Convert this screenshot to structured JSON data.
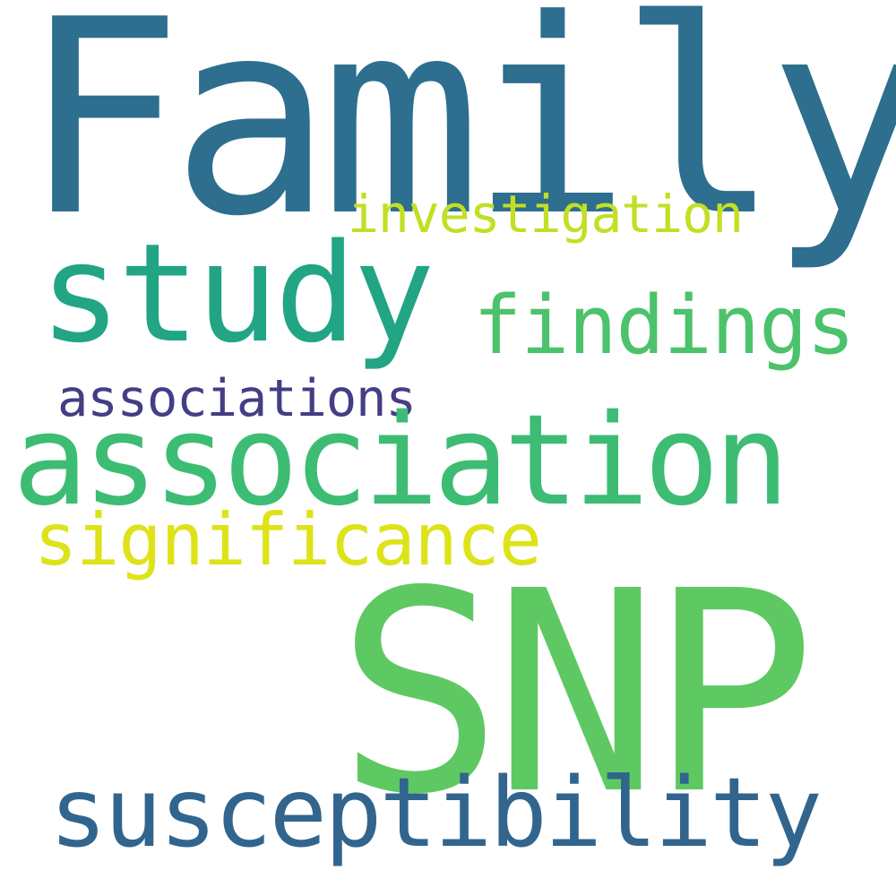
{
  "words": {
    "family": {
      "text": "Family",
      "color": "#2e6e8e"
    },
    "snp": {
      "text": "SNP",
      "color": "#5ec962"
    },
    "association": {
      "text": "association",
      "color": "#3dbc74"
    },
    "study": {
      "text": "study",
      "color": "#21a585"
    },
    "susceptibility": {
      "text": "susceptibility",
      "color": "#31658e"
    },
    "findings": {
      "text": "findings",
      "color": "#4cc26c"
    },
    "significance": {
      "text": "significance",
      "color": "#dde318"
    },
    "investigation": {
      "text": "investigation",
      "color": "#c2df23"
    },
    "associations": {
      "text": "associations",
      "color": "#433e85"
    }
  },
  "background": "#ffffff"
}
